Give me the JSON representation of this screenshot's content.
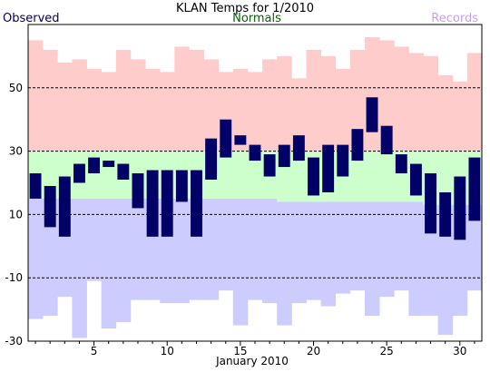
{
  "chart_data": {
    "type": "bar",
    "title": "KLAN Temps for 1/2010",
    "xlabel": "January 2010",
    "legend": [
      "Observed",
      "Normals",
      "Records"
    ],
    "legend_placement": "top",
    "colors": {
      "observed": "#000066",
      "normals_band": "#ccffcc",
      "record_high_band": "#ffcccc",
      "record_low_band": "#ccccff",
      "legend_observed": "#000066",
      "legend_normals": "#006600",
      "legend_records": "#cc99ff"
    },
    "ylim": [
      -30,
      70
    ],
    "xlim": [
      0.5,
      31.5
    ],
    "x_ticks": [
      5,
      10,
      15,
      20,
      25,
      30
    ],
    "y_ticks": [
      -30,
      -10,
      10,
      30,
      50
    ],
    "gridlines_y": [
      -10,
      10,
      30,
      50
    ],
    "days": [
      1,
      2,
      3,
      4,
      5,
      6,
      7,
      8,
      9,
      10,
      11,
      12,
      13,
      14,
      15,
      16,
      17,
      18,
      19,
      20,
      21,
      22,
      23,
      24,
      25,
      26,
      27,
      28,
      29,
      30,
      31
    ],
    "observed_high": [
      23,
      19,
      22,
      26,
      28,
      27,
      26,
      23,
      24,
      24,
      24,
      24,
      34,
      40,
      35,
      32,
      29,
      32,
      35,
      28,
      32,
      32,
      37,
      47,
      38,
      29,
      26,
      23,
      17,
      22,
      28
    ],
    "observed_low": [
      15,
      6,
      3,
      20,
      23,
      25,
      21,
      12,
      3,
      3,
      14,
      3,
      21,
      28,
      32,
      27,
      22,
      25,
      27,
      16,
      17,
      22,
      27,
      36,
      29,
      23,
      16,
      4,
      3,
      2,
      8
    ],
    "normal_high": [
      30,
      30,
      30,
      30,
      30,
      30,
      30,
      30,
      30,
      30,
      30,
      30,
      30,
      30,
      30,
      30,
      30,
      30,
      30,
      30,
      30,
      30,
      30,
      30,
      30,
      30,
      30,
      30,
      30,
      30,
      30
    ],
    "normal_low": [
      15,
      15,
      15,
      15,
      15,
      15,
      15,
      15,
      15,
      15,
      15,
      15,
      15,
      15,
      15,
      15,
      15,
      14,
      14,
      14,
      14,
      14,
      14,
      14,
      14,
      14,
      14,
      13,
      13,
      13,
      13
    ],
    "record_high": [
      65,
      62,
      58,
      59,
      56,
      55,
      62,
      59,
      56,
      55,
      63,
      62,
      59,
      55,
      56,
      55,
      59,
      60,
      53,
      62,
      60,
      56,
      62,
      66,
      65,
      63,
      61,
      60,
      54,
      52,
      61
    ],
    "record_low": [
      -23,
      -22,
      -16,
      -29,
      -11,
      -26,
      -24,
      -17,
      -17,
      -18,
      -18,
      -17,
      -17,
      -14,
      -25,
      -17,
      -18,
      -25,
      -18,
      -17,
      -19,
      -15,
      -14,
      -22,
      -16,
      -14,
      -22,
      -22,
      -28,
      -22,
      -14
    ]
  }
}
